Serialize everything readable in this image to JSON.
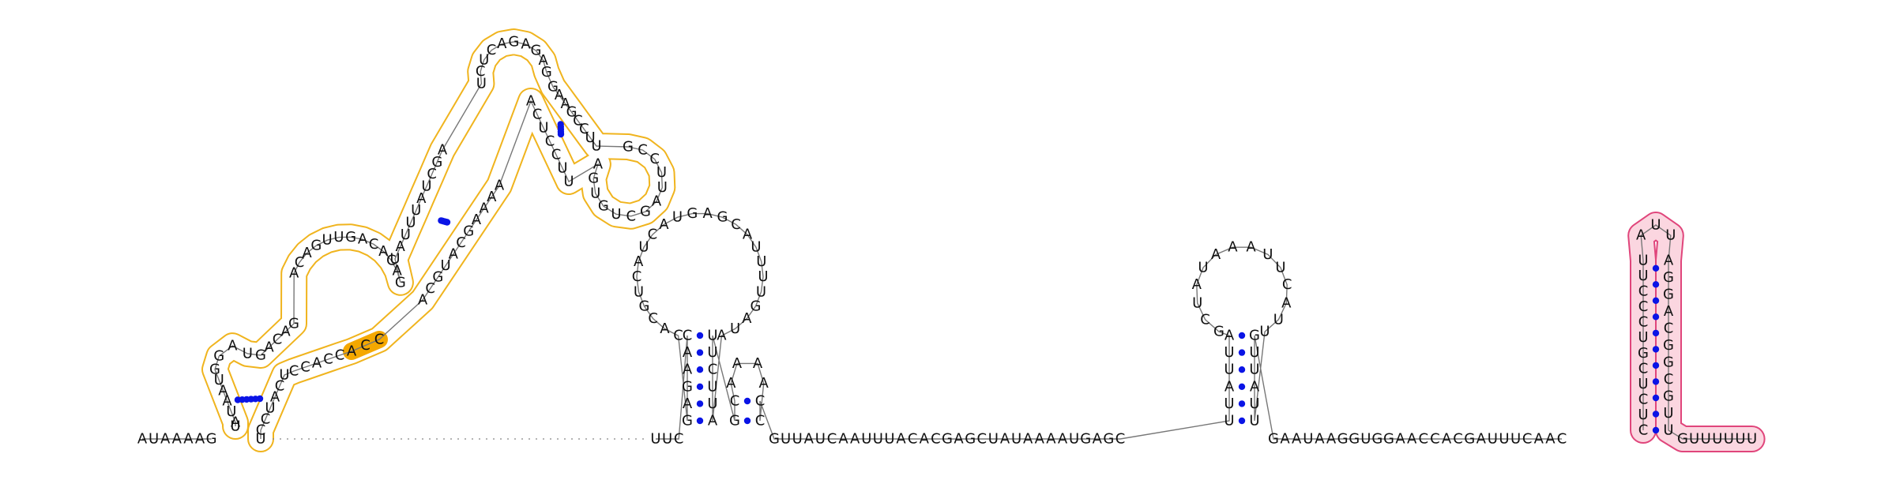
{
  "colors": {
    "base_text": "#111111",
    "backbone": "#777777",
    "base_pair_dot": "#0a14e6",
    "domain_yellow_outline": "#f0b41e",
    "domain_yellow_fill": "#ffffff",
    "domain_yellow_accent": "#f5a800",
    "domain_pink_outline": "#e0457b",
    "domain_pink_fill": "#fbd6e0"
  },
  "structure": {
    "left_tail": "AUAAAAG",
    "gap_note": "dotted unresolved region",
    "yellow_domain": {
      "h1_left": "GAUAAUG",
      "h1_loop": "",
      "h1_right": "UCAUCC",
      "tail_left": "GAUG",
      "mid_bulge_left": "CAGUUGACACAG",
      "mid_right": "CCACC",
      "accent": "CCA",
      "upper_left": "UAUUUAUCGA",
      "upper_right": "AAAAGCAUGCA",
      "top_loop": "UCUCAGAGAG",
      "right_arm": "GAAGCCUU",
      "right_loop": "GCCUUAGCUGUGA",
      "right_arm_in": "UUCCUCA"
    },
    "middle_hairpin": {
      "stem_left": "GAGAAC",
      "stem_right": "AUUCUU",
      "loop": "CACGUCAUCAUGAGCAUUUUGAUA",
      "small_stem_left": "GC",
      "small_stem_right": "CC",
      "small_loop": "AAAA"
    },
    "linker_1": "UUC",
    "linker_2": "GUUAUCAAUUUACACGAGCUAUAAAAUGAGC",
    "right_hairpin": {
      "stem_left": "UUAUUA",
      "stem_right": "UUAUUG",
      "loop": "GCUAUAAAUUCAUU"
    },
    "linker_3": "GAAUAAGGUGGAACCACGAUUUCAAC",
    "pink_domain": {
      "stem_left": "CUCUCGUCCCUU",
      "loop": "AUU",
      "stem_right": "AGGACGGCGUU",
      "tail": "GUUUUUU"
    }
  }
}
